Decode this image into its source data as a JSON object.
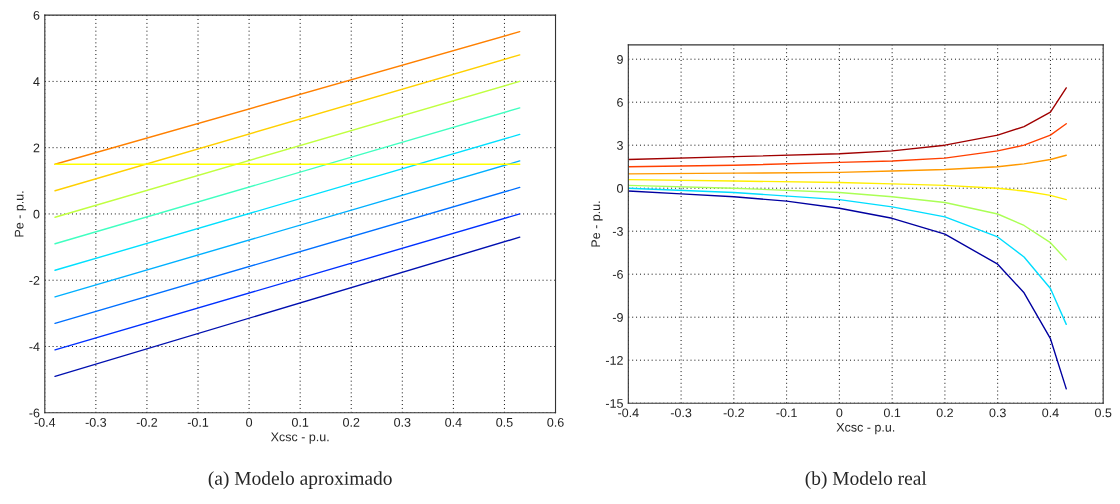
{
  "chart_data": [
    {
      "type": "line",
      "xlabel": "Xcsc - p.u.",
      "ylabel": "Pe - p.u.",
      "xlim": [
        -0.4,
        0.6
      ],
      "ylim": [
        -6,
        6
      ],
      "xticks": [
        -0.4,
        -0.3,
        -0.2,
        -0.1,
        0,
        0.1,
        0.2,
        0.3,
        0.4,
        0.5,
        0.6
      ],
      "yticks": [
        -6,
        -4,
        -2,
        0,
        2,
        4,
        6
      ],
      "grid": true,
      "line_style": "solid",
      "annotations": [
        "(a) Modelo aproximado"
      ],
      "series": [
        {
          "color": "#ff8000",
          "x": [
            -0.38,
            0.53
          ],
          "values": [
            1.5,
            5.5
          ]
        },
        {
          "color": "#ffd000",
          "x": [
            -0.38,
            0.53
          ],
          "values": [
            0.7,
            4.8
          ]
        },
        {
          "color": "#c0ff40",
          "x": [
            -0.38,
            0.53
          ],
          "values": [
            -0.1,
            4.0
          ]
        },
        {
          "color": "#40ffc0",
          "x": [
            -0.38,
            0.53
          ],
          "values": [
            -0.9,
            3.2
          ]
        },
        {
          "color": "#00e0ff",
          "x": [
            -0.38,
            0.53
          ],
          "values": [
            -1.7,
            2.4
          ]
        },
        {
          "color": "#00b0ff",
          "x": [
            -0.38,
            0.53
          ],
          "values": [
            -2.5,
            1.6
          ]
        },
        {
          "color": "#0070ff",
          "x": [
            -0.38,
            0.53
          ],
          "values": [
            -3.3,
            0.8
          ]
        },
        {
          "color": "#0030ff",
          "x": [
            -0.38,
            0.53
          ],
          "values": [
            -4.1,
            0.0
          ]
        },
        {
          "color": "#0010b0",
          "x": [
            -0.38,
            0.53
          ],
          "values": [
            -4.9,
            -0.7
          ]
        },
        {
          "color": "#ffff00",
          "x": [
            -0.38,
            0.53
          ],
          "values": [
            1.5,
            1.5
          ]
        }
      ]
    },
    {
      "type": "line",
      "xlabel": "Xcsc - p.u.",
      "ylabel": "Pe - p.u.",
      "xlim": [
        -0.4,
        0.5
      ],
      "ylim": [
        -15,
        10
      ],
      "xticks": [
        -0.4,
        -0.3,
        -0.2,
        -0.1,
        0,
        0.1,
        0.2,
        0.3,
        0.4,
        0.5
      ],
      "yticks": [
        -15,
        -12,
        -9,
        -6,
        -3,
        0,
        3,
        6,
        9
      ],
      "grid": true,
      "line_style": "solid",
      "annotations": [
        "(b) Modelo real"
      ],
      "series": [
        {
          "color": "#a00000",
          "x": [
            -0.4,
            -0.2,
            0,
            0.1,
            0.2,
            0.3,
            0.35,
            0.4,
            0.43
          ],
          "values": [
            2.0,
            2.2,
            2.4,
            2.6,
            3.0,
            3.7,
            4.3,
            5.3,
            7.0
          ]
        },
        {
          "color": "#ff4000",
          "x": [
            -0.4,
            -0.2,
            0,
            0.1,
            0.2,
            0.3,
            0.35,
            0.4,
            0.43
          ],
          "values": [
            1.5,
            1.6,
            1.8,
            1.9,
            2.1,
            2.6,
            3.0,
            3.7,
            4.5
          ]
        },
        {
          "color": "#ff9900",
          "x": [
            -0.4,
            -0.2,
            0,
            0.1,
            0.2,
            0.3,
            0.35,
            0.4,
            0.43
          ],
          "values": [
            1.0,
            1.05,
            1.1,
            1.2,
            1.3,
            1.5,
            1.7,
            2.0,
            2.3
          ]
        },
        {
          "color": "#ffee00",
          "x": [
            -0.4,
            -0.2,
            0,
            0.1,
            0.2,
            0.3,
            0.35,
            0.4,
            0.43
          ],
          "values": [
            0.6,
            0.5,
            0.4,
            0.3,
            0.2,
            0.0,
            -0.2,
            -0.5,
            -0.8
          ]
        },
        {
          "color": "#aaff55",
          "x": [
            -0.4,
            -0.2,
            0,
            0.1,
            0.2,
            0.3,
            0.35,
            0.4,
            0.43
          ],
          "values": [
            0.2,
            0.0,
            -0.3,
            -0.6,
            -1.0,
            -1.8,
            -2.6,
            -3.8,
            -5.0
          ]
        },
        {
          "color": "#00ddff",
          "x": [
            -0.4,
            -0.2,
            0,
            0.1,
            0.2,
            0.3,
            0.35,
            0.4,
            0.43
          ],
          "values": [
            0.0,
            -0.3,
            -0.8,
            -1.3,
            -2.0,
            -3.4,
            -4.8,
            -7.0,
            -9.5
          ]
        },
        {
          "color": "#0000a0",
          "x": [
            -0.4,
            -0.3,
            -0.2,
            -0.1,
            0,
            0.1,
            0.2,
            0.3,
            0.35,
            0.4,
            0.43
          ],
          "values": [
            -0.2,
            -0.4,
            -0.6,
            -0.9,
            -1.4,
            -2.1,
            -3.2,
            -5.3,
            -7.3,
            -10.5,
            -14.0
          ]
        }
      ]
    }
  ]
}
